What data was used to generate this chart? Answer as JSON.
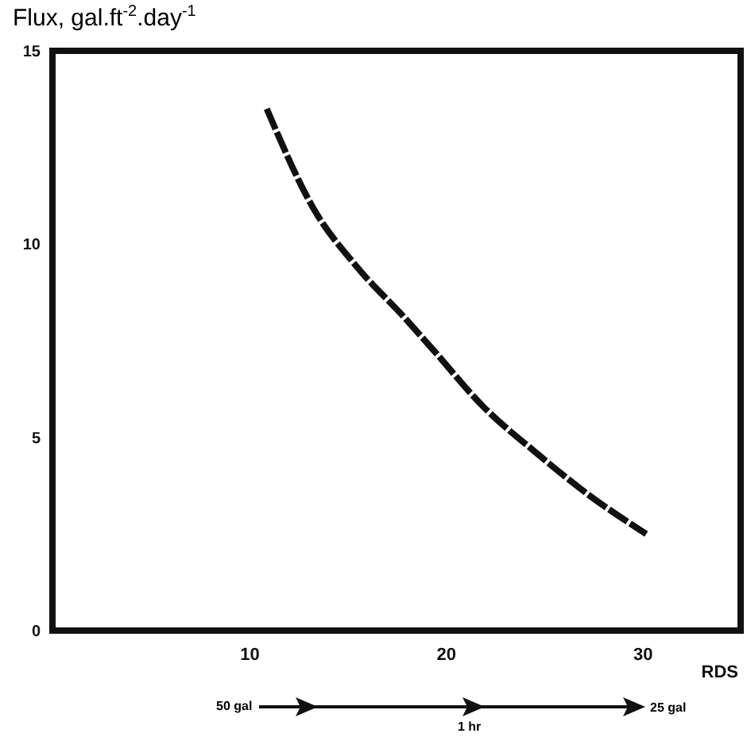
{
  "chart_data": {
    "type": "line",
    "ylabel": "Flux, gal.ft$^{-2}$.day$^{-1}$",
    "xlabel": "RDS",
    "x": [
      10.9,
      13.3,
      15.5,
      17.9,
      19.3,
      21.9,
      24.6,
      27.3,
      30.2
    ],
    "series": [
      {
        "color": "#111111",
        "values": [
          13.5,
          10.9,
          9.4,
          8.1,
          7.3,
          5.8,
          4.6,
          3.5,
          2.5
        ]
      }
    ],
    "xlim": [
      0,
      35
    ],
    "ylim": [
      0,
      15
    ],
    "xticks": [
      10,
      20,
      30
    ],
    "yticks": [
      0,
      5,
      10,
      15
    ],
    "grid": false,
    "marker": "none",
    "line_style": "dashed",
    "annotations": [
      "50 gal",
      "1 hr",
      "25 gal"
    ]
  }
}
